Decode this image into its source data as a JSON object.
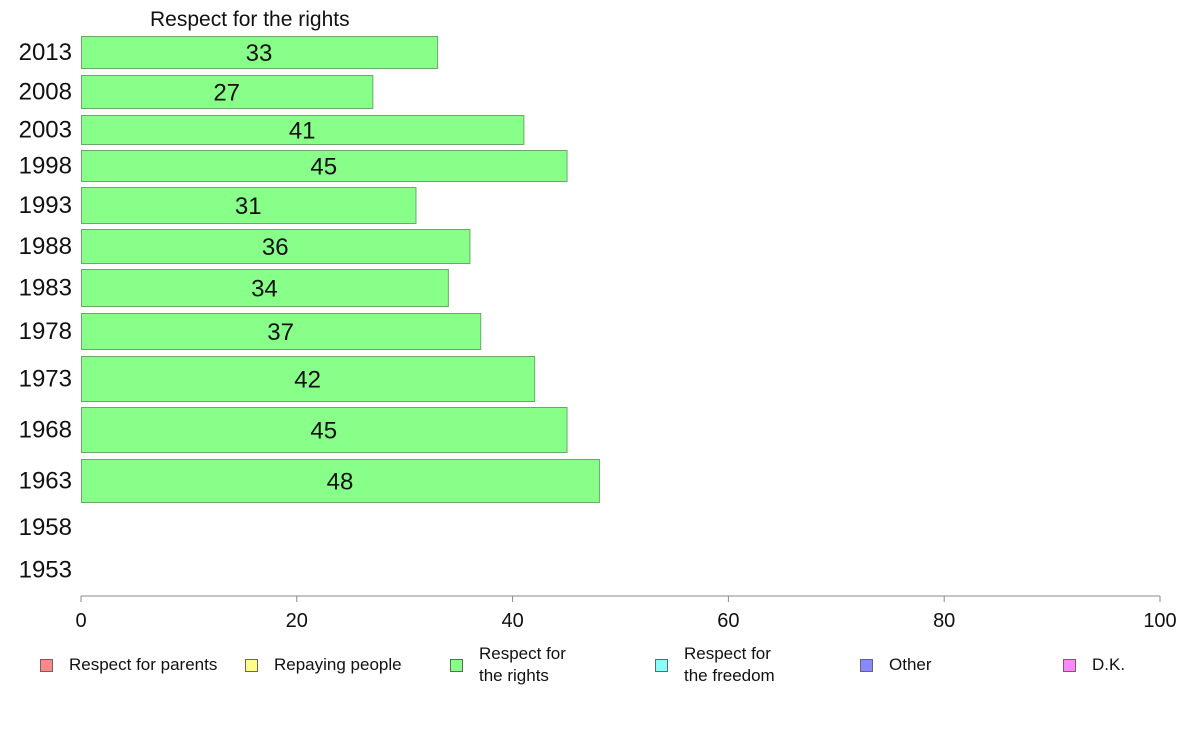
{
  "chart_data": {
    "type": "bar",
    "orientation": "horizontal",
    "title": "Respect for the rights",
    "categories": [
      "2013",
      "2008",
      "2003",
      "1998",
      "1993",
      "1988",
      "1983",
      "1978",
      "1973",
      "1968",
      "1963",
      "1958",
      "1953"
    ],
    "series": [
      {
        "name": "Respect for\nthe rights",
        "color": "#88ff88",
        "values": [
          33,
          27,
          41,
          45,
          31,
          36,
          34,
          37,
          42,
          45,
          48,
          null,
          null
        ]
      }
    ],
    "xlim": [
      0,
      100
    ],
    "xticks": [
      0,
      20,
      40,
      60,
      80,
      100
    ],
    "grid": false,
    "legend_position": "bottom"
  },
  "legend": [
    {
      "label": "Respect for parents",
      "color": "#ff8888"
    },
    {
      "label": "Repaying people",
      "color": "#ffff88"
    },
    {
      "label": "Respect for\nthe rights",
      "color": "#88ff88"
    },
    {
      "label": "Respect for\nthe freedom",
      "color": "#88ffff"
    },
    {
      "label": "Other",
      "color": "#8888ff"
    },
    {
      "label": "D.K.",
      "color": "#ff88ff"
    }
  ]
}
